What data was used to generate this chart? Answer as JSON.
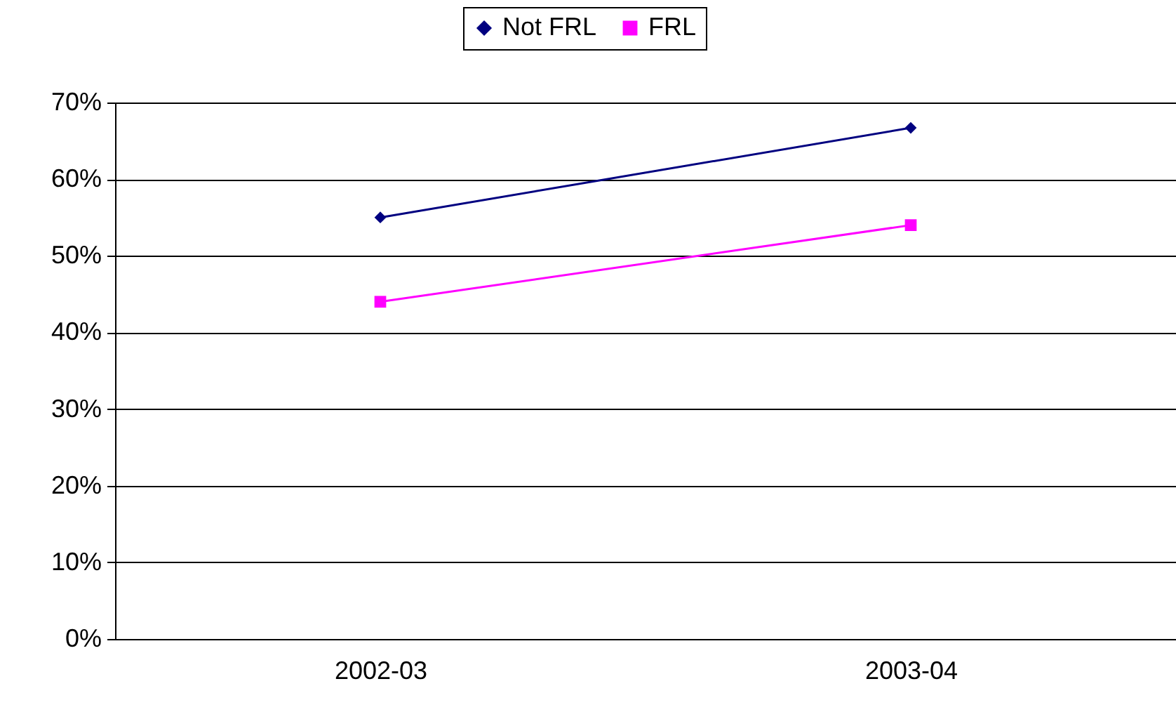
{
  "chart_data": {
    "type": "line",
    "categories": [
      "2002-03",
      "2003-04"
    ],
    "series": [
      {
        "name": "Not FRL",
        "color": "#000080",
        "marker": "diamond",
        "values": [
          55,
          66.7
        ]
      },
      {
        "name": "FRL",
        "color": "#ff00ff",
        "marker": "square",
        "values": [
          44,
          54
        ]
      }
    ],
    "ylim": [
      0,
      70
    ],
    "yticks": [
      {
        "value": 0,
        "label": "0%"
      },
      {
        "value": 10,
        "label": "10%"
      },
      {
        "value": 20,
        "label": "20%"
      },
      {
        "value": 30,
        "label": "30%"
      },
      {
        "value": 40,
        "label": "40%"
      },
      {
        "value": 50,
        "label": "50%"
      },
      {
        "value": 60,
        "label": "60%"
      },
      {
        "value": 70,
        "label": "70%"
      }
    ],
    "grid": "y",
    "legend": "top"
  }
}
